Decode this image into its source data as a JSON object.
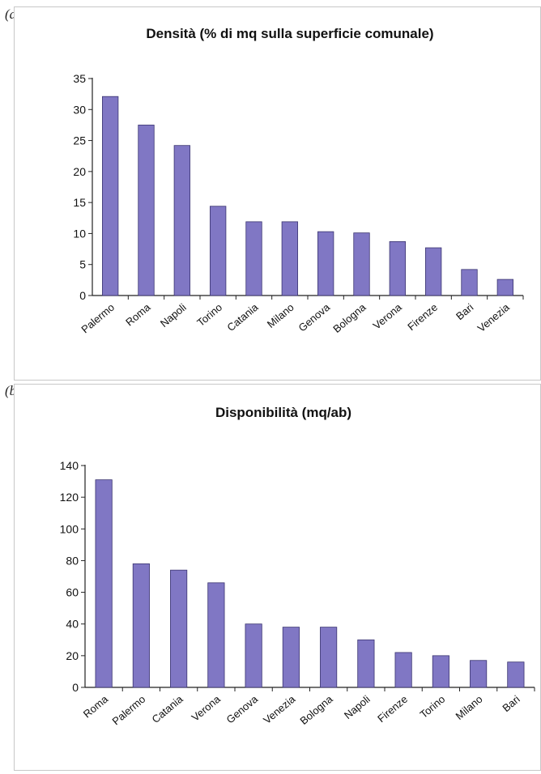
{
  "panels": [
    {
      "label": "(a)"
    },
    {
      "label": "(b)"
    }
  ],
  "colors": {
    "bar": "#8077c4",
    "bar_edge": "#3a3470",
    "axis": "#222222"
  },
  "chart_data": [
    {
      "type": "bar",
      "title": "Densità (% di mq sulla superficie comunale)",
      "xlabel": "",
      "ylabel": "",
      "ylim": [
        0,
        35
      ],
      "yticks": [
        0,
        5,
        10,
        15,
        20,
        25,
        30,
        35
      ],
      "grid": false,
      "categories": [
        "Palermo",
        "Roma",
        "Napoli",
        "Torino",
        "Catania",
        "Milano",
        "Genova",
        "Bologna",
        "Verona",
        "Firenze",
        "Bari",
        "Venezia"
      ],
      "values": [
        32.1,
        27.5,
        24.2,
        14.4,
        11.9,
        11.9,
        10.3,
        10.1,
        8.7,
        7.7,
        4.2,
        2.6
      ]
    },
    {
      "type": "bar",
      "title": "Disponibilità (mq/ab)",
      "xlabel": "",
      "ylabel": "",
      "ylim": [
        0,
        140
      ],
      "yticks": [
        0,
        20,
        40,
        60,
        80,
        100,
        120,
        140
      ],
      "grid": false,
      "categories": [
        "Roma",
        "Palermo",
        "Catania",
        "Verona",
        "Genova",
        "Venezia",
        "Bologna",
        "Napoli",
        "Firenze",
        "Torino",
        "Milano",
        "Bari"
      ],
      "values": [
        131,
        78,
        74,
        66,
        40,
        38,
        38,
        30,
        22,
        20,
        17,
        16
      ]
    }
  ]
}
